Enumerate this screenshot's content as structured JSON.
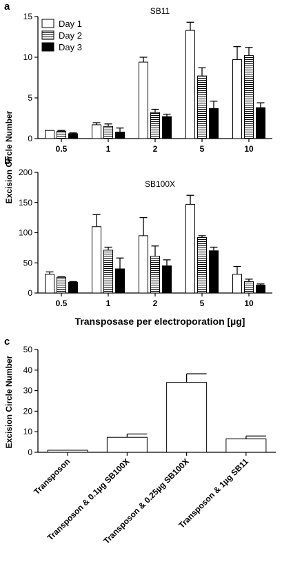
{
  "chart_data": [
    {
      "panel": "a",
      "type": "bar",
      "title": "SB11",
      "ylabel": "Excision Circle Number",
      "xlabel": "",
      "categories": [
        "0.5",
        "1",
        "2",
        "5",
        "10"
      ],
      "series": [
        {
          "name": "Day 1",
          "values": [
            1.0,
            1.7,
            9.4,
            13.3,
            9.7
          ],
          "errors": [
            0.0,
            0.25,
            0.6,
            1.0,
            1.6
          ]
        },
        {
          "name": "Day 2",
          "values": [
            0.9,
            1.5,
            3.2,
            7.7,
            10.2
          ],
          "errors": [
            0.1,
            0.3,
            0.4,
            1.0,
            1.0
          ]
        },
        {
          "name": "Day 3",
          "values": [
            0.6,
            0.8,
            2.7,
            3.7,
            3.8
          ],
          "errors": [
            0.1,
            0.5,
            0.3,
            0.9,
            0.6
          ]
        }
      ],
      "ylim": [
        0,
        15
      ],
      "yticks": [
        "0",
        "5",
        "10",
        "15"
      ],
      "legend": "top-left"
    },
    {
      "panel": "b",
      "type": "bar",
      "title": "SB100X",
      "ylabel": "",
      "xlabel": "Transposase per electroporation [µg]",
      "categories": [
        "0.5",
        "1",
        "2",
        "5",
        "10"
      ],
      "series": [
        {
          "name": "Day 1",
          "values": [
            31,
            110,
            95,
            147,
            31
          ],
          "errors": [
            4,
            20,
            30,
            15,
            13
          ]
        },
        {
          "name": "Day 2",
          "values": [
            26,
            71,
            61,
            92,
            19
          ],
          "errors": [
            1,
            5,
            17,
            3,
            4
          ]
        },
        {
          "name": "Day 3",
          "values": [
            18,
            40,
            45,
            70,
            13
          ],
          "errors": [
            1,
            18,
            10,
            6,
            2
          ]
        }
      ],
      "ylim": [
        0,
        200
      ],
      "yticks": [
        "0",
        "50",
        "100",
        "150",
        "200"
      ]
    },
    {
      "panel": "c",
      "type": "bar",
      "title": "",
      "ylabel": "Excision Circle Number",
      "xlabel": "",
      "categories": [
        "Transposon",
        "Transposon & 0.1µg SB100X",
        "Transposon & 0.25µg SB100X",
        "Transposon & 1µg SB11"
      ],
      "values": [
        1.0,
        7.3,
        34.0,
        6.5
      ],
      "errors": [
        0.0,
        1.6,
        4.2,
        1.4
      ],
      "ylim": [
        0,
        50
      ],
      "yticks": [
        "0",
        "10",
        "20",
        "30",
        "40",
        "50"
      ]
    }
  ]
}
